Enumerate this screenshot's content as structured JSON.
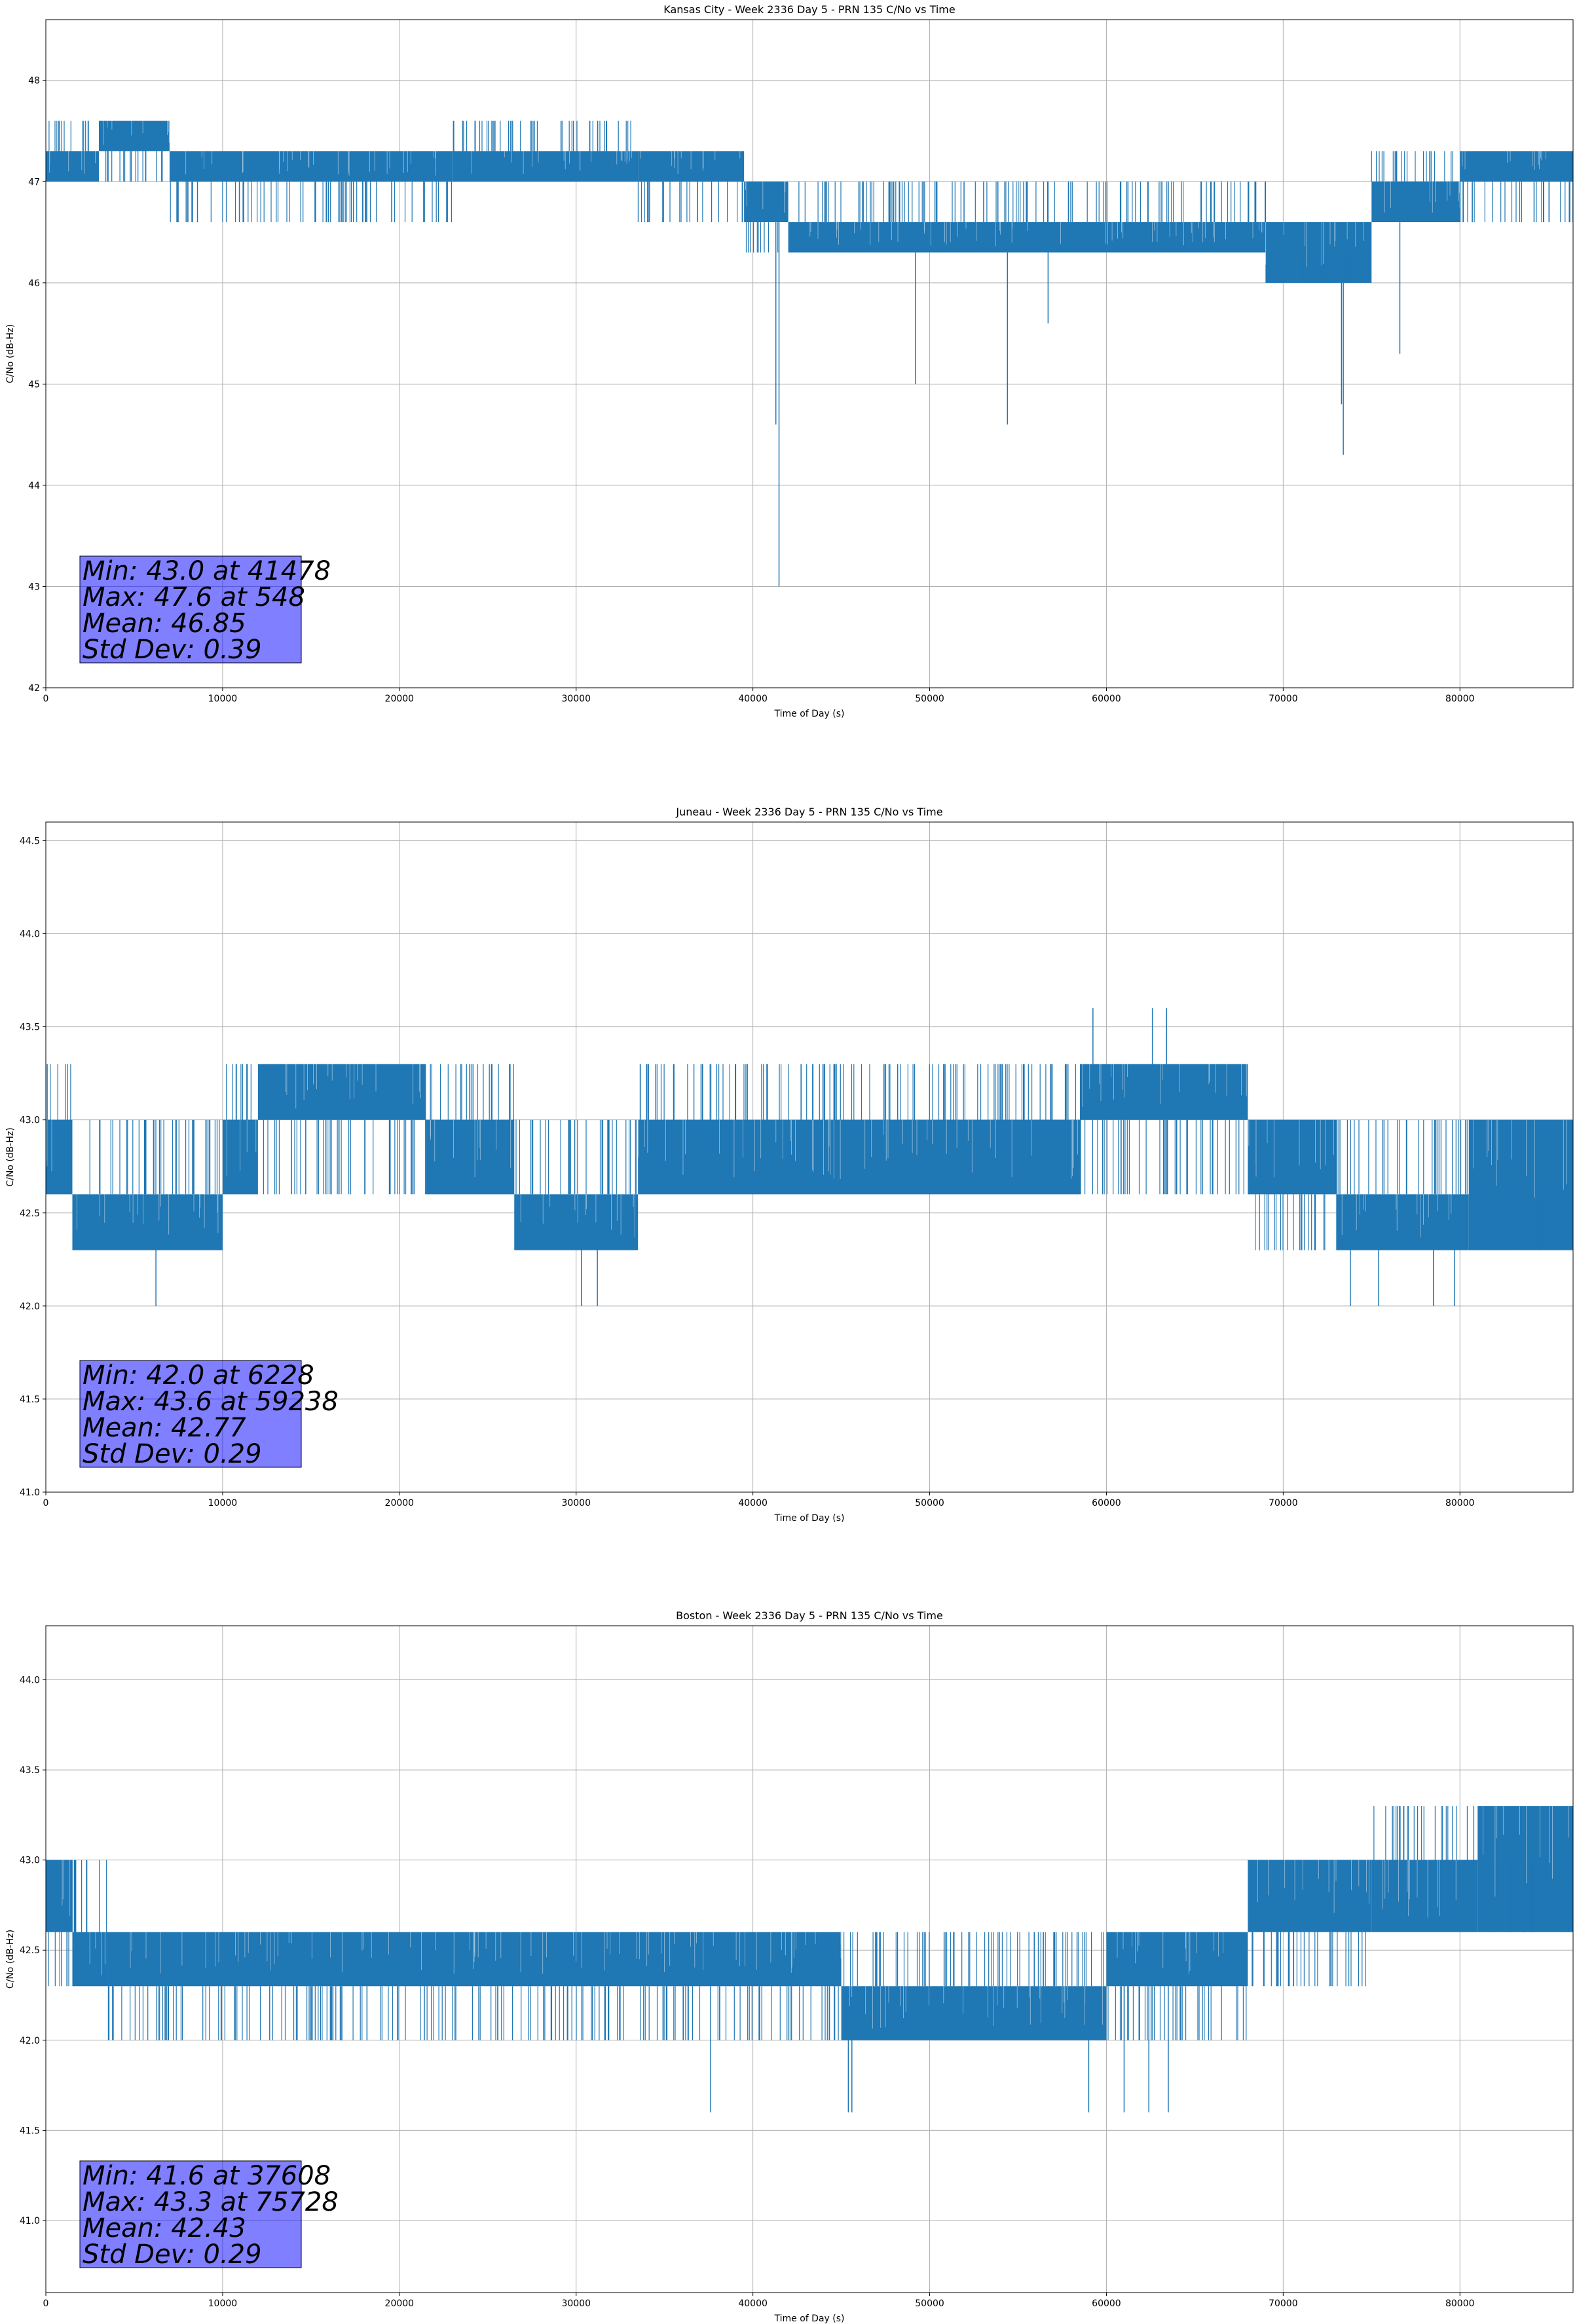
{
  "chart_data": [
    {
      "type": "line",
      "title": "Kansas City - Week 2336 Day 5 - PRN 135 C/No vs Time",
      "xlabel": "Time of Day (s)",
      "ylabel": "C/No (dB-Hz)",
      "xlim": [
        0,
        86400
      ],
      "ylim": [
        42,
        48.6
      ],
      "xticks": [
        0,
        10000,
        20000,
        30000,
        40000,
        50000,
        60000,
        70000,
        80000
      ],
      "yticks": [
        42,
        43,
        44,
        45,
        46,
        47,
        48
      ],
      "ytick_labels": [
        "42",
        "43",
        "44",
        "45",
        "46",
        "47",
        "48"
      ],
      "grid": true,
      "series_color": "#1f77b4",
      "series": [
        {
          "name": "C/No",
          "segments": [
            {
              "x": [
                0,
                3000
              ],
              "low": 47.0,
              "high": 47.3,
              "alt": 47.6
            },
            {
              "x": [
                3000,
                7000
              ],
              "low": 47.3,
              "high": 47.6,
              "alt": 47.0
            },
            {
              "x": [
                7000,
                23000
              ],
              "low": 47.0,
              "high": 47.3,
              "alt": 46.6
            },
            {
              "x": [
                23000,
                33500
              ],
              "low": 47.0,
              "high": 47.3,
              "alt": 47.6
            },
            {
              "x": [
                33500,
                39500
              ],
              "low": 47.0,
              "high": 47.3,
              "alt": 46.6
            },
            {
              "x": [
                39500,
                42000
              ],
              "low": 46.6,
              "high": 47.0,
              "alt": 46.3
            },
            {
              "x": [
                42000,
                69000
              ],
              "low": 46.3,
              "high": 46.6,
              "alt": 47.0
            },
            {
              "x": [
                69000,
                75000
              ],
              "low": 46.0,
              "high": 46.6,
              "alt": 46.3
            },
            {
              "x": [
                75000,
                80000
              ],
              "low": 46.6,
              "high": 47.0,
              "alt": 47.3
            },
            {
              "x": [
                80000,
                86400
              ],
              "low": 47.0,
              "high": 47.3,
              "alt": 46.6
            }
          ],
          "dips": [
            {
              "x": 41478,
              "y": 43.0
            },
            {
              "x": 41300,
              "y": 44.6
            },
            {
              "x": 49200,
              "y": 45.0
            },
            {
              "x": 54400,
              "y": 44.6
            },
            {
              "x": 56700,
              "y": 45.6
            },
            {
              "x": 73400,
              "y": 44.3
            },
            {
              "x": 73300,
              "y": 44.8
            },
            {
              "x": 76600,
              "y": 45.3
            }
          ]
        }
      ],
      "stats": [
        "Min: 43.0 at 41478",
        "Max: 47.6 at 548",
        "Mean: 46.85",
        "Std Dev: 0.39"
      ]
    },
    {
      "type": "line",
      "title": "Juneau - Week 2336 Day 5 - PRN 135 C/No vs Time",
      "xlabel": "Time of Day (s)",
      "ylabel": "C/No (dB-Hz)",
      "xlim": [
        0,
        86400
      ],
      "ylim": [
        41.0,
        44.6
      ],
      "xticks": [
        0,
        10000,
        20000,
        30000,
        40000,
        50000,
        60000,
        70000,
        80000
      ],
      "yticks": [
        41.0,
        41.5,
        42.0,
        42.5,
        43.0,
        43.5,
        44.0,
        44.5
      ],
      "ytick_labels": [
        "41.0",
        "41.5",
        "42.0",
        "42.5",
        "43.0",
        "43.5",
        "44.0",
        "44.5"
      ],
      "grid": true,
      "series_color": "#1f77b4",
      "series": [
        {
          "name": "C/No",
          "segments": [
            {
              "x": [
                0,
                1500
              ],
              "low": 42.6,
              "high": 43.0,
              "alt": 43.3
            },
            {
              "x": [
                1500,
                10000
              ],
              "low": 42.3,
              "high": 42.6,
              "alt": 43.0
            },
            {
              "x": [
                10000,
                12000
              ],
              "low": 42.6,
              "high": 43.0,
              "alt": 43.3
            },
            {
              "x": [
                12000,
                21500
              ],
              "low": 43.0,
              "high": 43.3,
              "alt": 42.6
            },
            {
              "x": [
                21500,
                26500
              ],
              "low": 42.6,
              "high": 43.0,
              "alt": 43.3
            },
            {
              "x": [
                26500,
                33500
              ],
              "low": 42.3,
              "high": 42.6,
              "alt": 43.0
            },
            {
              "x": [
                33500,
                58500
              ],
              "low": 42.6,
              "high": 43.0,
              "alt": 43.3
            },
            {
              "x": [
                58500,
                68000
              ],
              "low": 43.0,
              "high": 43.3,
              "alt": 42.6
            },
            {
              "x": [
                68000,
                73000
              ],
              "low": 42.6,
              "high": 43.0,
              "alt": 42.3
            },
            {
              "x": [
                73000,
                80500
              ],
              "low": 42.3,
              "high": 42.6,
              "alt": 43.0
            },
            {
              "x": [
                80500,
                86400
              ],
              "low": 42.3,
              "high": 43.0,
              "alt": 42.6
            }
          ],
          "dips": [
            {
              "x": 6228,
              "y": 42.0
            },
            {
              "x": 30300,
              "y": 42.0
            },
            {
              "x": 31200,
              "y": 42.0
            },
            {
              "x": 73800,
              "y": 42.0
            },
            {
              "x": 75400,
              "y": 42.0
            },
            {
              "x": 78500,
              "y": 42.0
            },
            {
              "x": 79700,
              "y": 42.0
            }
          ],
          "peaks": [
            {
              "x": 59238,
              "y": 43.6
            },
            {
              "x": 62600,
              "y": 43.6
            },
            {
              "x": 63400,
              "y": 43.6
            }
          ]
        }
      ],
      "stats": [
        "Min: 42.0 at 6228",
        "Max: 43.6 at 59238",
        "Mean: 42.77",
        "Std Dev: 0.29"
      ]
    },
    {
      "type": "line",
      "title": "Boston - Week 2336 Day 5 - PRN 135 C/No vs Time",
      "xlabel": "Time of Day (s)",
      "ylabel": "C/No (dB-Hz)",
      "xlim": [
        0,
        86400
      ],
      "ylim": [
        40.6,
        44.3
      ],
      "xticks": [
        0,
        10000,
        20000,
        30000,
        40000,
        50000,
        60000,
        70000,
        80000
      ],
      "yticks": [
        41.0,
        41.5,
        42.0,
        42.5,
        43.0,
        43.5,
        44.0
      ],
      "ytick_labels": [
        "41.0",
        "41.5",
        "42.0",
        "42.5",
        "43.0",
        "43.5",
        "44.0"
      ],
      "grid": true,
      "series_color": "#1f77b4",
      "series": [
        {
          "name": "C/No",
          "segments": [
            {
              "x": [
                0,
                1500
              ],
              "low": 42.6,
              "high": 43.0,
              "alt": 42.3
            },
            {
              "x": [
                1500,
                3500
              ],
              "low": 42.3,
              "high": 42.6,
              "alt": 43.0
            },
            {
              "x": [
                3500,
                45000
              ],
              "low": 42.3,
              "high": 42.6,
              "alt": 42.0
            },
            {
              "x": [
                45000,
                60000
              ],
              "low": 42.0,
              "high": 42.3,
              "alt": 42.6
            },
            {
              "x": [
                60000,
                68000
              ],
              "low": 42.3,
              "high": 42.6,
              "alt": 42.0
            },
            {
              "x": [
                68000,
                75000
              ],
              "low": 42.6,
              "high": 43.0,
              "alt": 42.3
            },
            {
              "x": [
                75000,
                81000
              ],
              "low": 42.6,
              "high": 43.0,
              "alt": 43.3
            },
            {
              "x": [
                81000,
                86400
              ],
              "low": 42.6,
              "high": 43.3,
              "alt": 43.0
            }
          ],
          "dips": [
            {
              "x": 37608,
              "y": 41.6
            },
            {
              "x": 45400,
              "y": 41.6
            },
            {
              "x": 45600,
              "y": 41.6
            },
            {
              "x": 59000,
              "y": 41.6
            },
            {
              "x": 61000,
              "y": 41.6
            },
            {
              "x": 62400,
              "y": 41.6
            },
            {
              "x": 63500,
              "y": 41.6
            }
          ]
        }
      ],
      "stats": [
        "Min: 41.6 at 37608",
        "Max: 43.3 at 75728",
        "Mean: 42.43",
        "Std Dev: 0.29"
      ]
    }
  ]
}
